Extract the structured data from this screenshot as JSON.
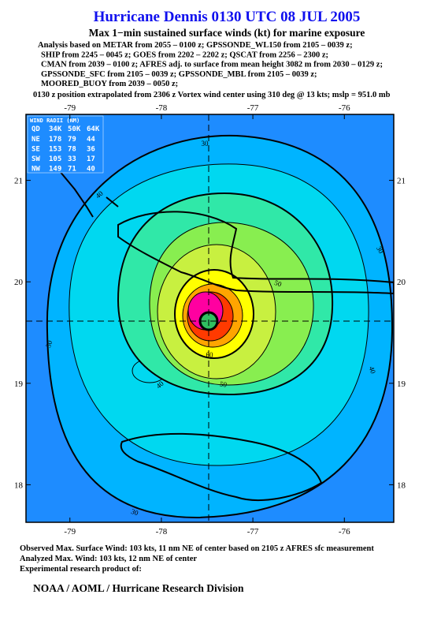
{
  "header": {
    "title": "Hurricane Dennis 0130 UTC 08 JUL 2005",
    "subtitle": "Max 1−min sustained surface winds (kt) for marine exposure",
    "analysis": [
      "Analysis based on  METAR from 2055 – 0100 z;  GPSSONDE_WL150 from 2105 – 0039 z;",
      "SHIP from 2245 – 0045 z;  GOES from 2202 – 2202 z;  QSCAT from 2256 – 2300 z;",
      "CMAN from 2039 – 0100 z;  AFRES adj. to surface from mean height 3082 m from 2030 – 0129 z;",
      "GPSSONDE_SFC from 2105 – 0039 z;  GPSSONDE_MBL from 2105 – 0039 z;",
      "MOORED_BUOY from 2039 – 0050 z;"
    ],
    "position": "0130 z position extrapolated from 2306 z Vortex wind center using 310 deg @ 13 kts; mslp = 951.0 mb"
  },
  "map": {
    "lonlim": [
      -79.48,
      -75.46
    ],
    "latlim": [
      17.63,
      21.65
    ],
    "lonticks": [
      -79,
      -78,
      -77,
      -76
    ],
    "latticks": [
      18,
      19,
      20,
      21
    ],
    "contour_labels": [
      30,
      30,
      30,
      30,
      40,
      40,
      40,
      50,
      50,
      60
    ]
  },
  "wind_radii": {
    "title": "WIND RADII (NM)",
    "header": [
      "QD",
      "34K",
      "50K",
      "64K"
    ],
    "rows": [
      [
        "NE",
        178,
        79,
        44
      ],
      [
        "SE",
        153,
        78,
        36
      ],
      [
        "SW",
        105,
        33,
        17
      ],
      [
        "NW",
        149,
        71,
        40
      ]
    ]
  },
  "footer": {
    "lines": [
      "Observed Max. Surface Wind: 103 kts, 11 nm NE of center based on 2105 z AFRES sfc measurement",
      "Analyzed Max. Wind: 103 kts, 12 nm NE of center",
      "Experimental research product of:"
    ],
    "org": "NOAA / AOML / Hurricane Research Division"
  }
}
